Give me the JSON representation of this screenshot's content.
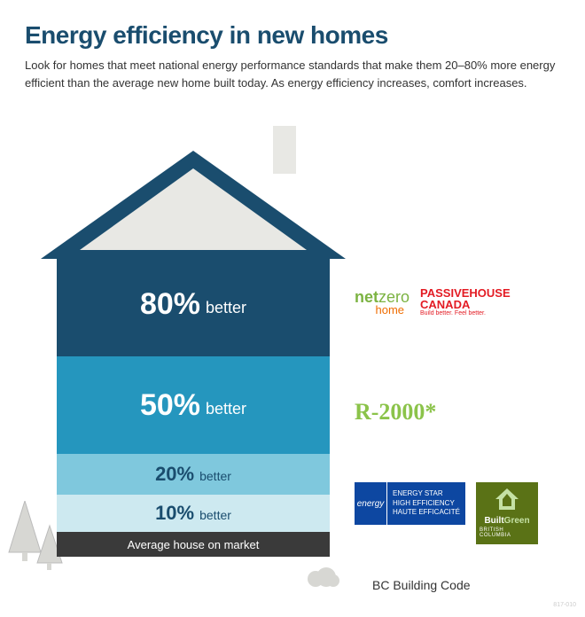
{
  "header": {
    "title": "Energy efficiency in new homes",
    "title_color": "#1a4d6e",
    "subtitle": "Look for homes that meet national energy performance standards that make them 20–80% more energy efficient than the average new home built today. As energy efficiency increases, comfort increases.",
    "subtitle_color": "#333333"
  },
  "house": {
    "roof_fill": "#1a4d6e",
    "roof_inner": "#e8e8e4",
    "chimney_fill": "#e8e8e4",
    "tiers": [
      {
        "pct": "80%",
        "label": "better",
        "bg": "#1a4d6e",
        "height": 118,
        "size": "lg"
      },
      {
        "pct": "50%",
        "label": "better",
        "bg": "#2596be",
        "height": 110,
        "size": "lg"
      },
      {
        "pct": "20%",
        "label": "better",
        "bg": "#7fc8dd",
        "height": 46,
        "size": "sm",
        "text": "#1a4d6e"
      },
      {
        "pct": "10%",
        "label": "better",
        "bg": "#cde9f0",
        "height": 42,
        "size": "sm",
        "text": "#1a4d6e"
      }
    ],
    "base": {
      "label": "Average house on market",
      "bg": "#3a3a3a"
    }
  },
  "logos": {
    "row80": {
      "netzero": {
        "part1": "net",
        "part2": "zero",
        "sub": "home"
      },
      "passive": {
        "line1": "PASSIVEHOUSE",
        "line2": "CANADA",
        "tag": "Build better. Feel better."
      }
    },
    "row50": {
      "r2000": "R-2000*"
    },
    "row20": {
      "energystar": {
        "left": "energy",
        "r1": "ENERGY STAR",
        "r2": "HIGH EFFICIENCY",
        "r3": "HAUTE EFFICACITÉ"
      },
      "builtgreen": {
        "l1": "Built",
        "l2": "Green",
        "l3": "BRITISH COLUMBIA"
      }
    }
  },
  "bottom": {
    "bc": "BC Building Code",
    "wm": "817-010"
  },
  "trees": {
    "fill": "#d7d7d3"
  },
  "bushes": {
    "fill": "#d7d7d3"
  }
}
